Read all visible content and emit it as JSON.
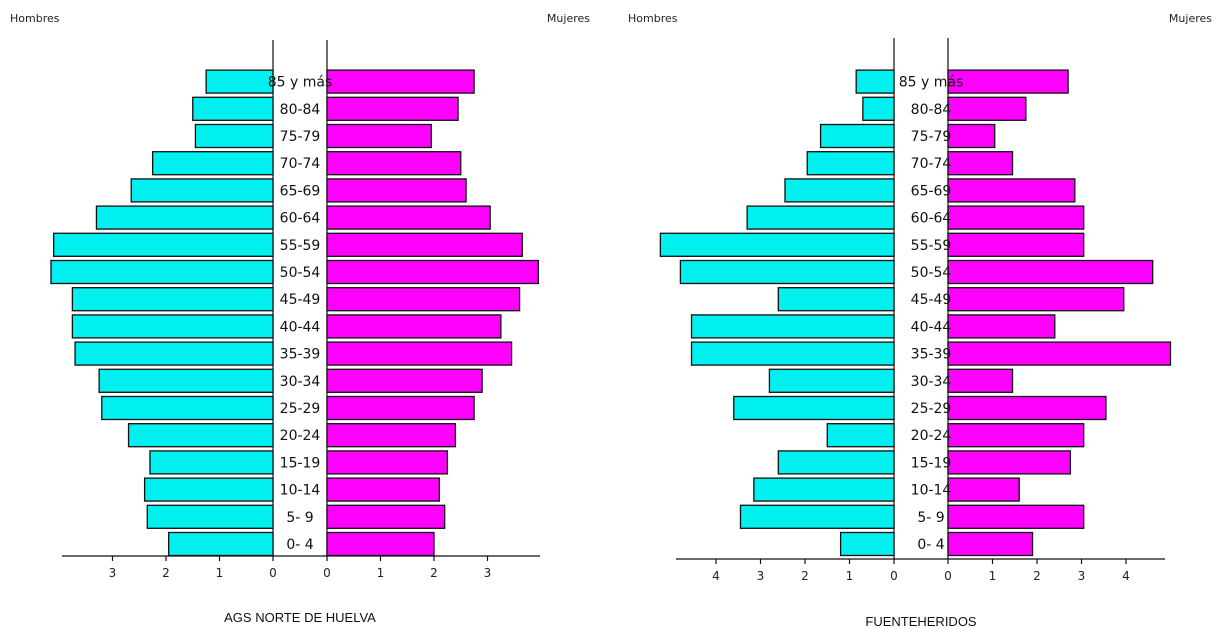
{
  "colors": {
    "male": "#00f0f0",
    "female": "#ff00ff"
  },
  "chart_data": [
    {
      "type": "bar",
      "title": "AGS NORTE DE HUELVA",
      "left_label": "Hombres",
      "right_label": "Mujeres",
      "categories": [
        "0- 4",
        "5- 9",
        "10-14",
        "15-19",
        "20-24",
        "25-29",
        "30-34",
        "35-39",
        "40-44",
        "45-49",
        "50-54",
        "55-59",
        "60-64",
        "65-69",
        "70-74",
        "75-79",
        "80-84",
        "85 y más"
      ],
      "series": [
        {
          "name": "Hombres",
          "values": [
            1.95,
            2.35,
            2.4,
            2.3,
            2.7,
            3.2,
            3.25,
            3.7,
            3.75,
            3.75,
            4.15,
            4.1,
            3.3,
            2.65,
            2.25,
            1.45,
            1.5,
            1.25
          ]
        },
        {
          "name": "Mujeres",
          "values": [
            2.0,
            2.2,
            2.1,
            2.25,
            2.4,
            2.75,
            2.9,
            3.45,
            3.25,
            3.6,
            3.95,
            3.65,
            3.05,
            2.6,
            2.5,
            1.95,
            2.45,
            2.75
          ]
        }
      ],
      "male_ticks": [
        "3",
        "2",
        "1",
        "0"
      ],
      "female_ticks": [
        "0",
        "1",
        "2",
        "3"
      ],
      "xlim": [
        0,
        4.2
      ]
    },
    {
      "type": "bar",
      "title": "FUENTEHERIDOS",
      "left_label": "Hombres",
      "right_label": "Mujeres",
      "categories": [
        "0- 4",
        "5- 9",
        "10-14",
        "15-19",
        "20-24",
        "25-29",
        "30-34",
        "35-39",
        "40-44",
        "45-49",
        "50-54",
        "55-59",
        "60-64",
        "65-69",
        "70-74",
        "75-79",
        "80-84",
        "85 y más"
      ],
      "series": [
        {
          "name": "Hombres",
          "values": [
            1.2,
            3.45,
            3.15,
            2.6,
            1.5,
            3.6,
            2.8,
            4.55,
            4.55,
            2.6,
            4.8,
            5.25,
            3.3,
            2.45,
            1.95,
            1.65,
            0.7,
            0.85
          ]
        },
        {
          "name": "Mujeres",
          "values": [
            1.9,
            3.05,
            1.6,
            2.75,
            3.05,
            3.55,
            1.45,
            5.0,
            2.4,
            3.95,
            4.6,
            3.05,
            3.05,
            2.85,
            1.45,
            1.05,
            1.75,
            2.7
          ]
        }
      ],
      "male_ticks": [
        "4",
        "3",
        "2",
        "1",
        "0"
      ],
      "female_ticks": [
        "0",
        "1",
        "2",
        "3",
        "4"
      ],
      "xlim": [
        0,
        5.3
      ]
    }
  ]
}
